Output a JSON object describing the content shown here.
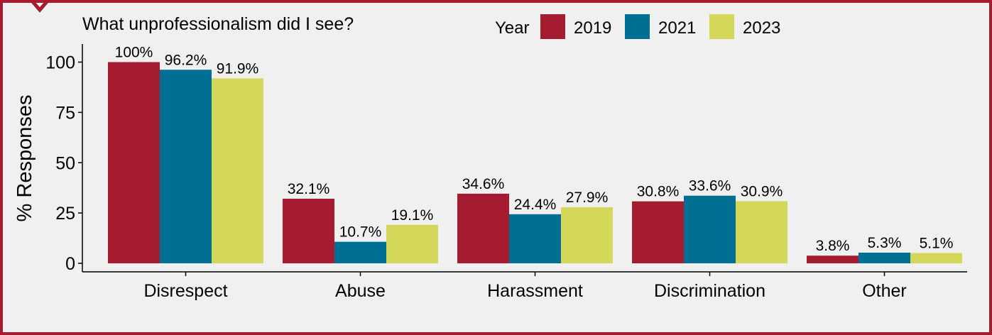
{
  "colors": {
    "border": "#a51c30",
    "panel": "#f0f0f0",
    "axis": "#000000"
  },
  "chart_data": {
    "type": "bar",
    "title": "What unprofessionalism did I see?",
    "legend_title": "Year",
    "legend_position": "top",
    "ylabel": "% Responses",
    "xlabel": "",
    "ylim": [
      0,
      109
    ],
    "yticks": [
      0,
      25,
      50,
      75,
      100
    ],
    "grid": false,
    "categories": [
      "Disrespect",
      "Abuse",
      "Harassment",
      "Discrimination",
      "Other"
    ],
    "series": [
      {
        "name": "2019",
        "color": "#a51c30",
        "values": [
          100,
          32.1,
          34.6,
          30.8,
          3.8
        ],
        "labels": [
          "100%",
          "32.1%",
          "34.6%",
          "30.8%",
          "3.8%"
        ]
      },
      {
        "name": "2021",
        "color": "#006f94",
        "values": [
          96.2,
          10.7,
          24.4,
          33.6,
          5.3
        ],
        "labels": [
          "96.2%",
          "10.7%",
          "24.4%",
          "33.6%",
          "5.3%"
        ]
      },
      {
        "name": "2023",
        "color": "#d3d85a",
        "values": [
          91.9,
          19.1,
          27.9,
          30.9,
          5.1
        ],
        "labels": [
          "91.9%",
          "19.1%",
          "27.9%",
          "30.9%",
          "5.1%"
        ]
      }
    ]
  }
}
